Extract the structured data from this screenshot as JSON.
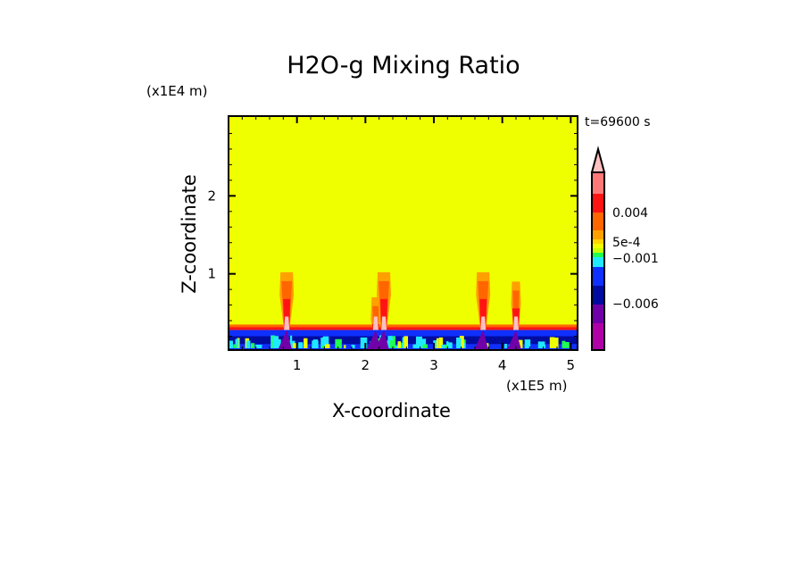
{
  "chart_data": {
    "type": "heatmap",
    "title": "H2O-g Mixing Ratio",
    "xlabel": "X-coordinate",
    "ylabel": "Z-coordinate",
    "x_unit": "(x1E5 m)",
    "y_unit": "(x1E4 m)",
    "time_label": "t=69600 s",
    "xlim": [
      0,
      5.1
    ],
    "ylim": [
      0,
      3.0
    ],
    "x_ticks": [
      "1",
      "2",
      "3",
      "4",
      "5"
    ],
    "y_ticks": [
      "1",
      "2"
    ],
    "background_color": "#f0ff00",
    "boundary_layer": {
      "top": 0.35,
      "moist_band": [
        0.28,
        0.35
      ],
      "dry_layer": [
        0.03,
        0.28
      ]
    },
    "plumes": [
      {
        "x": 0.85,
        "top": 1.02
      },
      {
        "x": 2.15,
        "top": 0.7
      },
      {
        "x": 2.27,
        "top": 1.02
      },
      {
        "x": 3.72,
        "top": 1.02
      },
      {
        "x": 4.2,
        "top": 0.9
      }
    ],
    "colorbar": {
      "colors": [
        "#ffc0c0",
        "#ff7878",
        "#ff1414",
        "#ff6600",
        "#ffa000",
        "#ffd400",
        "#f0ff00",
        "#c8ff00",
        "#20ff50",
        "#20e8ff",
        "#1030ff",
        "#000ca0",
        "#7000a8",
        "#b000a8",
        "#e800a8"
      ],
      "labels": [
        {
          "text": "0.004",
          "value": 0.004
        },
        {
          "text": "5e-4",
          "value": 0.0005
        },
        {
          "text": "−0.001",
          "value": -0.001
        },
        {
          "text": "−0.006",
          "value": -0.006
        }
      ],
      "extend": "max"
    }
  }
}
